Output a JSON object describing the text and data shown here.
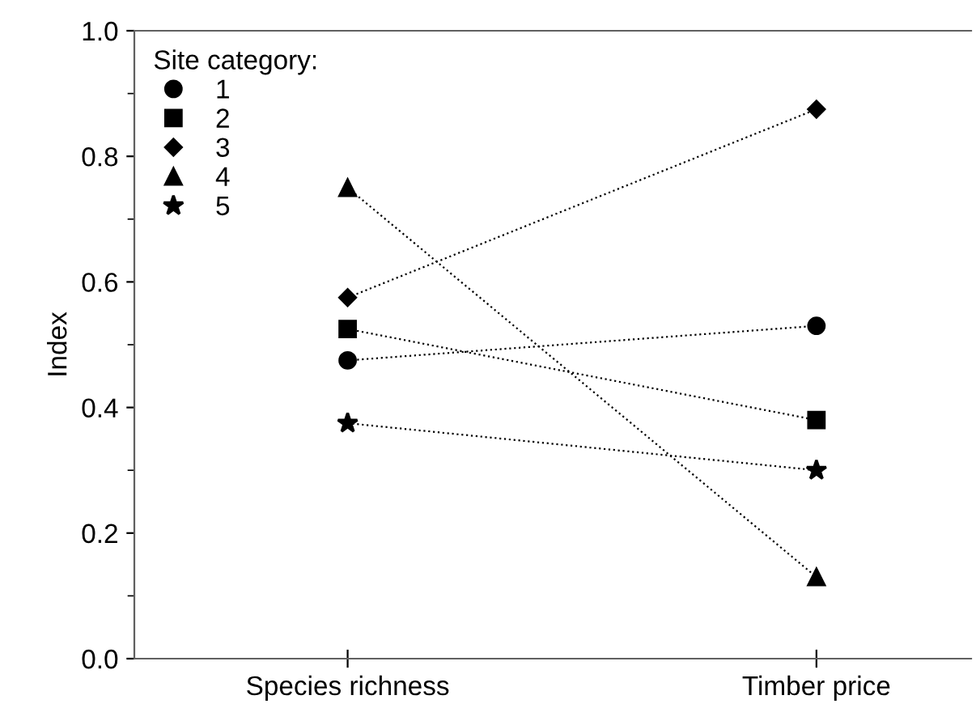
{
  "chart_data": {
    "type": "line",
    "ylabel": "Index",
    "legend_title": "Site category:",
    "categories": [
      "Species richness",
      "Timber price"
    ],
    "ylim": [
      0,
      1
    ],
    "yticks": [
      {
        "value": 0,
        "label": "0.0"
      },
      0.2,
      0.4,
      0.6,
      0.8,
      {
        "value": 1,
        "label": "1.0"
      }
    ],
    "legend": "top left",
    "line_style": "dotted",
    "grid": false,
    "series": [
      {
        "name": "1",
        "color": "#000000",
        "marker": "circle",
        "values": [
          0.475,
          0.53
        ]
      },
      {
        "name": "2",
        "color": "#000000",
        "marker": "square",
        "values": [
          0.525,
          0.38
        ]
      },
      {
        "name": "3",
        "color": "#000000",
        "marker": "diamond",
        "values": [
          0.575,
          0.875
        ]
      },
      {
        "name": "4",
        "color": "#000000",
        "marker": "triangle",
        "values": [
          0.75,
          0.13
        ]
      },
      {
        "name": "5",
        "color": "#000000",
        "marker": "star",
        "values": [
          0.375,
          0.3
        ]
      }
    ]
  }
}
